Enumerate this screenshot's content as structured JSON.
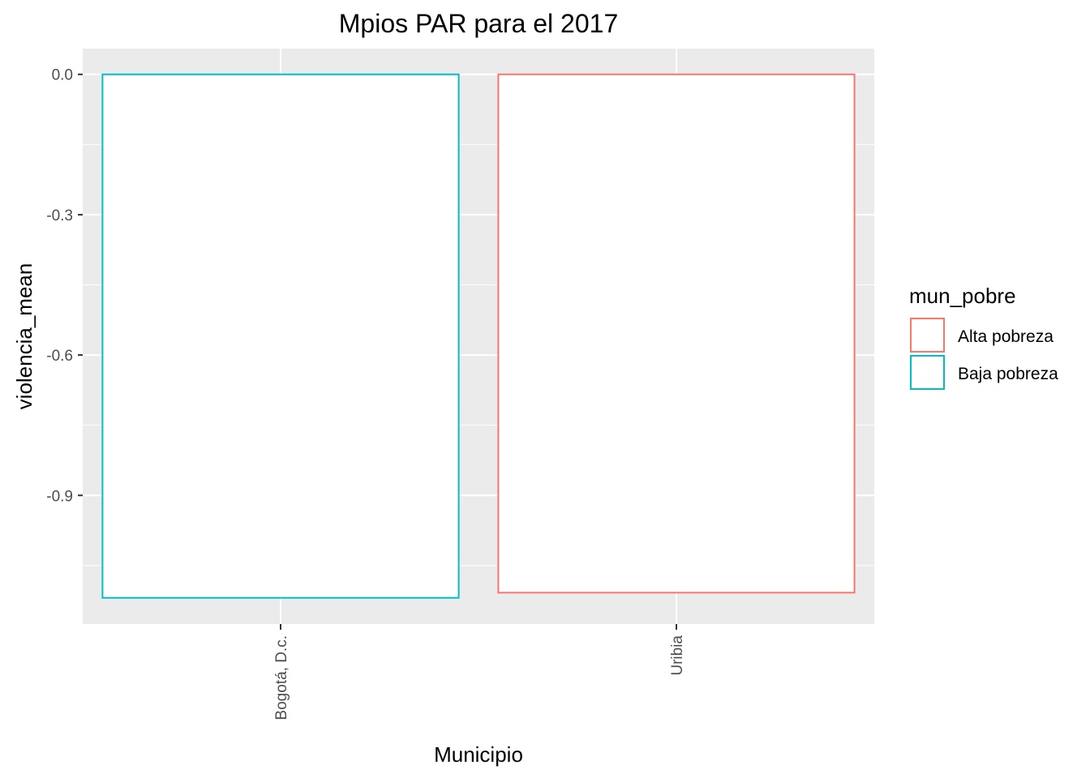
{
  "chart_data": {
    "type": "bar",
    "title": "Mpios PAR para el 2017",
    "xlabel": "Municipio",
    "ylabel": "violencia_mean",
    "categories": [
      "Bogotá, D.c.",
      "Uribia"
    ],
    "values": [
      -1.119,
      -1.108
    ],
    "bar_groups": [
      "Baja pobreza",
      "Alta pobreza"
    ],
    "ylim": [
      -1.175,
      0.055
    ],
    "yticks": [
      0.0,
      -0.3,
      -0.6,
      -0.9
    ],
    "ytick_labels": [
      "0.0",
      "-0.3",
      "-0.6",
      "-0.9"
    ],
    "grid": true,
    "legend": {
      "title": "mun_pobre",
      "position": "right",
      "entries": [
        {
          "label": "Alta pobreza",
          "color": "#F8766D"
        },
        {
          "label": "Baja pobreza",
          "color": "#00BFC4"
        }
      ]
    },
    "bar_fill": "#FFFFFF",
    "panel_background": "#EBEBEB",
    "grid_color": "#FFFFFF"
  }
}
